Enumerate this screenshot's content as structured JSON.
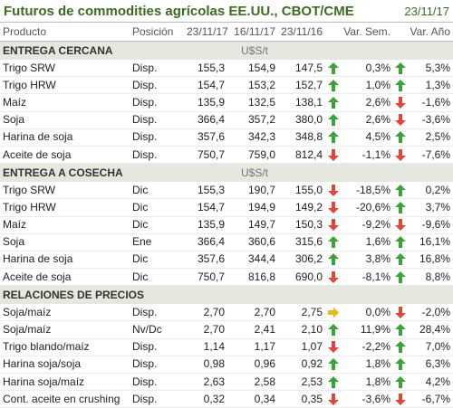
{
  "header": {
    "title": "Futuros de commodities agrícolas EE.UU., CBOT/CME",
    "date": "23/11/17"
  },
  "table": {
    "columns": [
      "Producto",
      "Posición",
      "23/11/17",
      "16/11/17",
      "23/11/16",
      "Var. Sem.",
      "Var. Año"
    ],
    "sections": [
      {
        "title": "ENTREGA CERCANA",
        "unit": "U$S/t",
        "rows": [
          [
            "Trigo SRW",
            "Disp.",
            "155,3",
            "154,9",
            "147,5",
            "0,3%",
            "5,3%"
          ],
          [
            "Trigo HRW",
            "Disp.",
            "154,7",
            "153,2",
            "152,7",
            "1,0%",
            "1,3%"
          ],
          [
            "Maíz",
            "Disp.",
            "135,9",
            "132,5",
            "138,1",
            "2,6%",
            "-1,6%"
          ],
          [
            "Soja",
            "Disp.",
            "366,4",
            "357,2",
            "380,0",
            "2,6%",
            "-3,6%"
          ],
          [
            "Harina de soja",
            "Disp.",
            "357,6",
            "342,3",
            "348,8",
            "4,5%",
            "2,5%"
          ],
          [
            "Aceite de soja",
            "Disp.",
            "750,7",
            "759,0",
            "812,4",
            "-1,1%",
            "-7,6%"
          ]
        ]
      },
      {
        "title": "ENTREGA A COSECHA",
        "unit": "U$S/t",
        "rows": [
          [
            "Trigo SRW",
            "Dic",
            "155,3",
            "190,7",
            "155,0",
            "-18,5%",
            "0,2%"
          ],
          [
            "Trigo HRW",
            "Dic",
            "154,7",
            "194,9",
            "149,2",
            "-20,6%",
            "3,7%"
          ],
          [
            "Maíz",
            "Dic",
            "135,9",
            "149,7",
            "150,3",
            "-9,2%",
            "-9,6%"
          ],
          [
            "Soja",
            "Ene",
            "366,4",
            "360,6",
            "315,6",
            "1,6%",
            "16,1%"
          ],
          [
            "Harina de soja",
            "Dic",
            "357,6",
            "344,4",
            "306,2",
            "3,8%",
            "16,8%"
          ],
          [
            "Aceite de soja",
            "Dic",
            "750,7",
            "816,8",
            "690,0",
            "-8,1%",
            "8,8%"
          ]
        ]
      },
      {
        "title": "RELACIONES DE PRECIOS",
        "rows": [
          [
            "Soja/maíz",
            "Disp.",
            "2,70",
            "2,70",
            "2,75",
            "0,0%",
            "-2,0%"
          ],
          [
            "Soja/maíz",
            "Nv/Dc",
            "2,70",
            "2,41",
            "2,10",
            "11,9%",
            "28,4%"
          ],
          [
            "Trigo blando/maíz",
            "Disp.",
            "1,14",
            "1,17",
            "1,07",
            "-2,2%",
            "7,0%"
          ],
          [
            "Harina soja/soja",
            "Disp.",
            "0,98",
            "0,96",
            "0,92",
            "1,8%",
            "6,3%"
          ],
          [
            "Harina soja/maíz",
            "Disp.",
            "2,63",
            "2,58",
            "2,53",
            "1,8%",
            "4,2%"
          ],
          [
            "Cont. aceite en crushing",
            "Disp.",
            "0,32",
            "0,34",
            "0,35",
            "-3,6%",
            "-6,7%"
          ]
        ]
      }
    ]
  }
}
